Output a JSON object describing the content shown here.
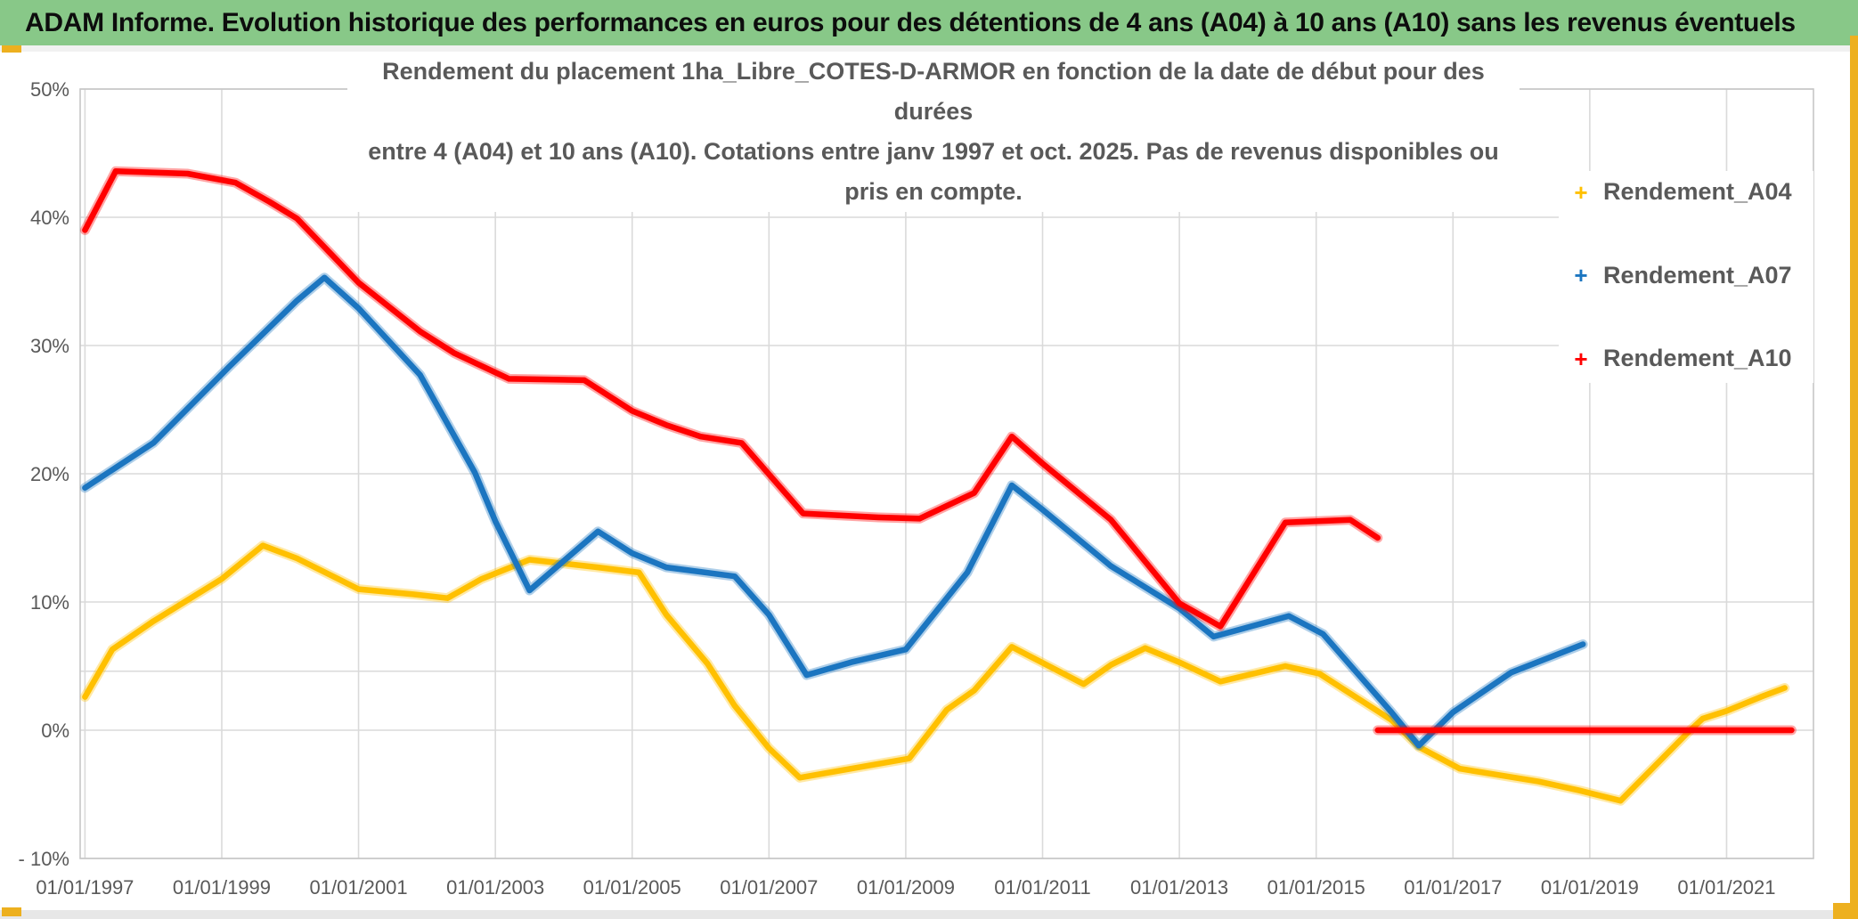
{
  "header": {
    "title": "ADAM Informe. Evolution historique des performances en euros pour des détentions de 4 ans (A04) à 10 ans (A10) sans les revenus éventuels"
  },
  "colors": {
    "header_green": "#88C888",
    "accent_gold": "#EDB01F",
    "grid": "#DADADA",
    "plot_border": "#C6C6C6",
    "axis_text": "#595959",
    "series_a04": "#FFC000",
    "series_a07": "#1B75C0",
    "series_a10": "#FF0000"
  },
  "chart_data": {
    "type": "line",
    "title": "Rendement du placement 1ha_Libre_COTES-D-ARMOR en fonction de la date de début pour des durées entre 4 (A04) et 10 ans (A10). Cotations entre janv 1997 et oct. 2025. Pas de revenus disponibles ou pris en compte.",
    "title_line1": "Rendement du placement 1ha_Libre_COTES-D-ARMOR en fonction de la date de début pour des durées",
    "title_line2": "entre 4 (A04) et 10 ans (A10). Cotations entre janv 1997 et oct. 2025. Pas de revenus disponibles ou pris en compte.",
    "xlabel": "",
    "ylabel": "",
    "grid": true,
    "legend_position": "right",
    "legend_marker": "+",
    "ylim": [
      -10,
      50
    ],
    "x_range_years": [
      1996.93,
      2022.27
    ],
    "y_ticks": [
      {
        "label": "50%",
        "value": 50
      },
      {
        "label": "40%",
        "value": 40
      },
      {
        "label": "30%",
        "value": 30
      },
      {
        "label": "20%",
        "value": 20
      },
      {
        "label": "10%",
        "value": 10
      },
      {
        "label": "0%",
        "value": 0
      },
      {
        "label": "- 10%",
        "value": -10
      }
    ],
    "extra_faint_gridline_value": 4.6,
    "x_tick_years": [
      1997,
      1999,
      2001,
      2003,
      2005,
      2007,
      2009,
      2011,
      2013,
      2015,
      2017,
      2019,
      2021
    ],
    "x_tick_labels": [
      "01/01/1997",
      "01/01/1999",
      "01/01/2001",
      "01/01/2003",
      "01/01/2005",
      "01/01/2007",
      "01/01/2009",
      "01/01/2011",
      "01/01/2013",
      "01/01/2015",
      "01/01/2017",
      "01/01/2019",
      "01/01/2021"
    ],
    "legend": [
      {
        "label": "Rendement_A04",
        "color": "#FFC000"
      },
      {
        "label": "Rendement_A07",
        "color": "#1B75C0"
      },
      {
        "label": "Rendement_A10",
        "color": "#FF0000"
      }
    ],
    "series": [
      {
        "name": "Rendement_A04",
        "color": "#FFC000",
        "segments": [
          [
            [
              1997.0,
              2.6
            ],
            [
              1997.4,
              6.3
            ],
            [
              1998.0,
              8.5
            ],
            [
              1999.0,
              11.8
            ],
            [
              1999.6,
              14.4
            ],
            [
              2000.1,
              13.4
            ],
            [
              2001.0,
              11.0
            ],
            [
              2001.8,
              10.6
            ],
            [
              2002.3,
              10.3
            ],
            [
              2002.8,
              11.8
            ],
            [
              2003.5,
              13.3
            ],
            [
              2004.5,
              12.7
            ],
            [
              2005.1,
              12.3
            ],
            [
              2005.5,
              9.0
            ],
            [
              2006.1,
              5.2
            ],
            [
              2006.5,
              1.9
            ],
            [
              2007.0,
              -1.4
            ],
            [
              2007.45,
              -3.7
            ],
            [
              2008.2,
              -3.0
            ],
            [
              2009.05,
              -2.2
            ],
            [
              2009.6,
              1.6
            ],
            [
              2010.0,
              3.1
            ],
            [
              2010.55,
              6.5
            ],
            [
              2011.6,
              3.6
            ],
            [
              2012.0,
              5.1
            ],
            [
              2012.5,
              6.4
            ],
            [
              2013.0,
              5.3
            ],
            [
              2013.6,
              3.8
            ],
            [
              2014.55,
              5.0
            ],
            [
              2015.05,
              4.4
            ],
            [
              2016.1,
              0.8
            ],
            [
              2016.5,
              -1.3
            ],
            [
              2017.1,
              -3.0
            ],
            [
              2018.25,
              -4.0
            ],
            [
              2018.85,
              -4.7
            ],
            [
              2019.45,
              -5.5
            ],
            [
              2020.45,
              -0.1
            ],
            [
              2020.65,
              0.9
            ],
            [
              2021.0,
              1.5
            ],
            [
              2021.5,
              2.6
            ],
            [
              2021.85,
              3.3
            ]
          ]
        ]
      },
      {
        "name": "Rendement_A07",
        "color": "#1B75C0",
        "segments": [
          [
            [
              1997.0,
              18.9
            ],
            [
              1998.0,
              22.4
            ],
            [
              1999.1,
              28.3
            ],
            [
              2000.1,
              33.5
            ],
            [
              2000.5,
              35.3
            ],
            [
              2001.0,
              32.9
            ],
            [
              2001.9,
              27.7
            ],
            [
              2002.7,
              20.1
            ],
            [
              2003.0,
              16.3
            ],
            [
              2003.5,
              10.9
            ],
            [
              2004.5,
              15.5
            ],
            [
              2005.0,
              13.8
            ],
            [
              2005.5,
              12.7
            ],
            [
              2006.5,
              12.0
            ],
            [
              2007.0,
              9.0
            ],
            [
              2007.55,
              4.3
            ],
            [
              2008.2,
              5.3
            ],
            [
              2009.0,
              6.3
            ],
            [
              2009.9,
              12.3
            ],
            [
              2010.55,
              19.1
            ],
            [
              2011.0,
              17.2
            ],
            [
              2012.0,
              12.8
            ],
            [
              2013.0,
              9.5
            ],
            [
              2013.5,
              7.3
            ],
            [
              2014.6,
              8.9
            ],
            [
              2015.1,
              7.5
            ],
            [
              2016.1,
              1.4
            ],
            [
              2016.5,
              -1.2
            ],
            [
              2017.0,
              1.4
            ],
            [
              2017.85,
              4.5
            ],
            [
              2018.9,
              6.7
            ]
          ]
        ]
      },
      {
        "name": "Rendement_A10",
        "color": "#FF0000",
        "segments": [
          [
            [
              1997.0,
              39.0
            ],
            [
              1997.45,
              43.6
            ],
            [
              1998.5,
              43.4
            ],
            [
              1999.2,
              42.7
            ],
            [
              1999.7,
              41.2
            ],
            [
              2000.1,
              39.9
            ],
            [
              2001.0,
              34.9
            ],
            [
              2001.9,
              31.1
            ],
            [
              2002.4,
              29.4
            ],
            [
              2003.2,
              27.4
            ],
            [
              2004.3,
              27.3
            ],
            [
              2005.0,
              24.9
            ],
            [
              2005.5,
              23.8
            ],
            [
              2006.0,
              22.9
            ],
            [
              2006.6,
              22.4
            ],
            [
              2007.5,
              16.9
            ],
            [
              2008.6,
              16.6
            ],
            [
              2009.2,
              16.5
            ],
            [
              2010.0,
              18.5
            ],
            [
              2010.55,
              22.9
            ],
            [
              2011.0,
              20.8
            ],
            [
              2012.0,
              16.4
            ],
            [
              2013.0,
              9.9
            ],
            [
              2013.6,
              8.1
            ],
            [
              2014.55,
              16.2
            ],
            [
              2015.5,
              16.4
            ],
            [
              2015.9,
              15.0
            ]
          ],
          [
            [
              2015.9,
              0.0
            ],
            [
              2021.95,
              0.0
            ]
          ]
        ]
      }
    ]
  }
}
